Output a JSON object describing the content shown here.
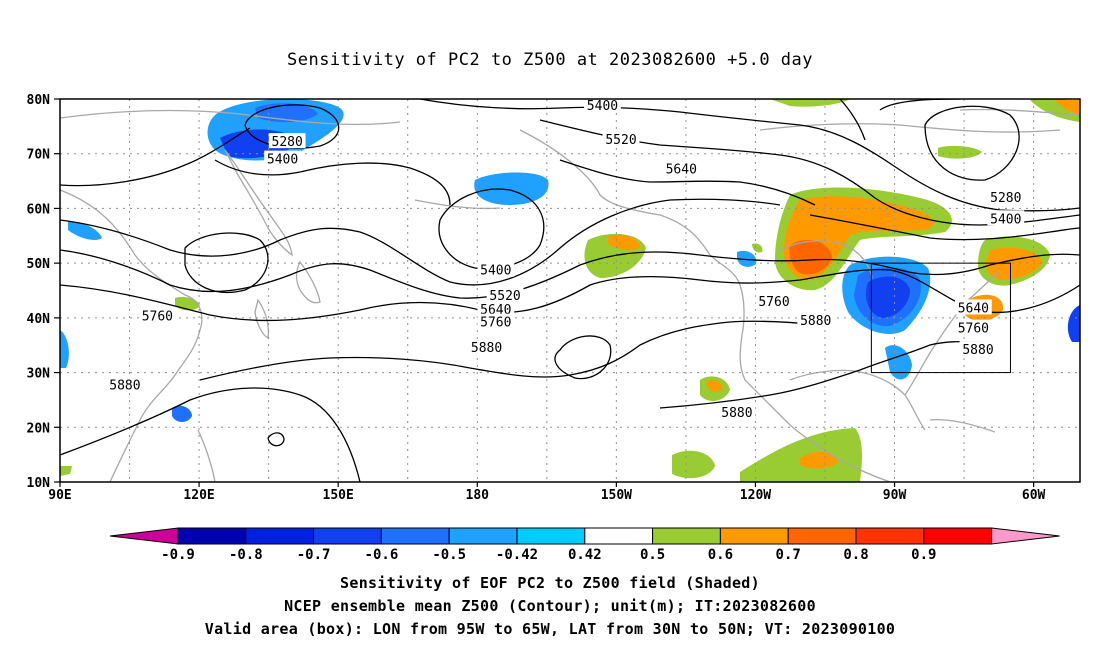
{
  "title": "Sensitivity of PC2 to Z500 at 2023082600 +5.0 day",
  "axes": {
    "lat_labels": [
      "80N",
      "70N",
      "60N",
      "50N",
      "40N",
      "30N",
      "20N",
      "10N"
    ],
    "lon_labels": [
      "90E",
      "120E",
      "150E",
      "180",
      "150W",
      "120W",
      "90W",
      "60W"
    ]
  },
  "contour_labels": [
    {
      "text": "5280",
      "lon": 139,
      "lat": 72.3
    },
    {
      "text": "5400",
      "lon": 138,
      "lat": 69.1
    },
    {
      "text": "5400",
      "lon": 207,
      "lat": 78.9
    },
    {
      "text": "5520",
      "lon": 211,
      "lat": 72.7
    },
    {
      "text": "5640",
      "lon": 224,
      "lat": 67.3
    },
    {
      "text": "5280",
      "lon": 294,
      "lat": 62.1
    },
    {
      "text": "5400",
      "lon": 294,
      "lat": 58.2
    },
    {
      "text": "5400",
      "lon": 184,
      "lat": 48.8
    },
    {
      "text": "5520",
      "lon": 186,
      "lat": 44.2
    },
    {
      "text": "5640",
      "lon": 184,
      "lat": 41.6
    },
    {
      "text": "5760",
      "lon": 184,
      "lat": 39.3
    },
    {
      "text": "5760",
      "lon": 111,
      "lat": 40.4
    },
    {
      "text": "5880",
      "lon": 182,
      "lat": 34.7
    },
    {
      "text": "5880",
      "lon": 104,
      "lat": 27.8
    },
    {
      "text": "5760",
      "lon": 244,
      "lat": 43.1
    },
    {
      "text": "5880",
      "lon": 253,
      "lat": 39.6
    },
    {
      "text": "5880",
      "lon": 236,
      "lat": 22.8
    },
    {
      "text": "5640",
      "lon": 287,
      "lat": 41.9
    },
    {
      "text": "5760",
      "lon": 287,
      "lat": 38.2
    },
    {
      "text": "5880",
      "lon": 288,
      "lat": 34.3
    }
  ],
  "valid_box": {
    "lon_min": -95,
    "lon_max": -65,
    "lat_min": 30,
    "lat_max": 50
  },
  "colorbar": {
    "labels": [
      "-0.9",
      "-0.8",
      "-0.7",
      "-0.6",
      "-0.5",
      "-0.42",
      "0.42",
      "0.5",
      "0.6",
      "0.7",
      "0.8",
      "0.9"
    ],
    "colors": [
      "#0000b0",
      "#0020e0",
      "#1040f0",
      "#2070ff",
      "#20a0ff",
      "#00ccff",
      "#ffffff",
      "#99cc33",
      "#ff9900",
      "#ff6600",
      "#ff3300",
      "#ff0000"
    ],
    "low_extend_color": "#cc0099",
    "high_extend_color": "#ff99cc"
  },
  "footer": {
    "line1": "Sensitivity of EOF PC2 to Z500 field (Shaded)",
    "line2": "NCEP ensemble mean Z500 (Contour); unit(m); IT:2023082600",
    "line3": "Valid area (box): LON from 95W to 65W, LAT from 30N to 50N; VT: 2023090100"
  }
}
